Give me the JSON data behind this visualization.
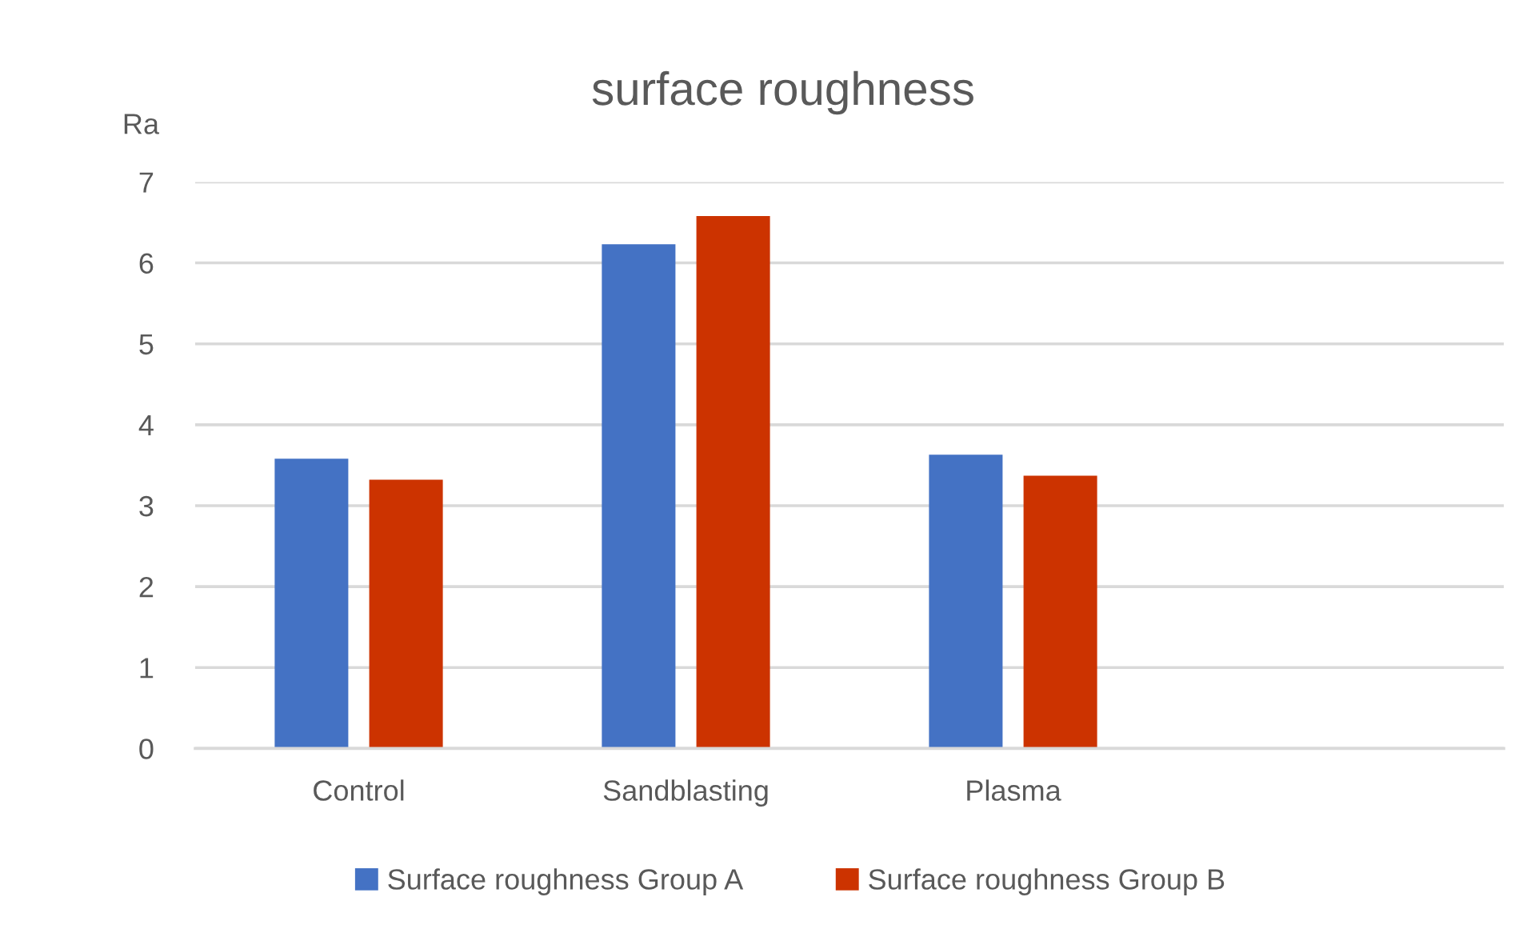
{
  "chart_data": {
    "type": "bar",
    "title": "surface roughness",
    "ylabel": "Ra",
    "categories": [
      "Control",
      "Sandblasting",
      "Plasma",
      null
    ],
    "series": [
      {
        "name": "Surface roughness Group A",
        "color": "#4472c4",
        "values": [
          3.58,
          6.23,
          3.63,
          null
        ]
      },
      {
        "name": "Surface roughness Group B",
        "color": "#cc3300",
        "values": [
          3.32,
          6.58,
          3.37,
          null
        ]
      }
    ],
    "ylim": [
      0,
      7
    ],
    "yticks": [
      0,
      1,
      2,
      3,
      4,
      5,
      6,
      7
    ],
    "grid": "y",
    "legend": "bottom"
  }
}
